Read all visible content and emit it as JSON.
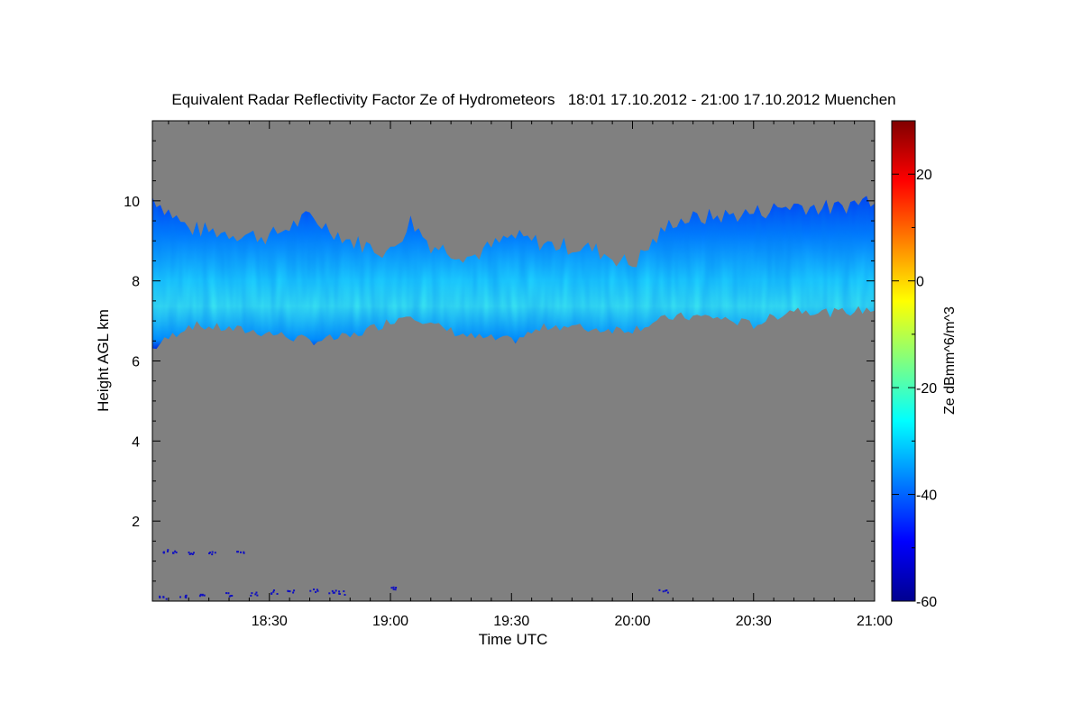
{
  "chart_data": {
    "type": "heatmap",
    "title": "Equivalent Radar Reflectivity Factor Ze of Hydrometeors   18:01 17.10.2012 - 21:00 17.10.2012 Muenchen",
    "xlabel": "Time UTC",
    "ylabel": "Height AGL km",
    "colorbar_label": "Ze dBmm^6/m^3",
    "xlim": [
      "18:01",
      "21:00"
    ],
    "ylim": [
      0,
      12
    ],
    "clim": [
      -60,
      30
    ],
    "x_ticks": [
      "18:30",
      "19:00",
      "19:30",
      "20:00",
      "20:30",
      "21:00"
    ],
    "y_ticks": [
      "2",
      "4",
      "6",
      "8",
      "10"
    ],
    "colorbar_ticks": [
      "-60",
      "-40",
      "-20",
      "0",
      "20"
    ],
    "background_color": "#808080",
    "colormap": [
      "#00008f",
      "#0000ff",
      "#0080ff",
      "#00ffff",
      "#80ff80",
      "#ffff00",
      "#ff8000",
      "#ff0000",
      "#800000"
    ],
    "cloud_layer": {
      "time": [
        "18:01",
        "18:10",
        "18:20",
        "18:30",
        "18:40",
        "18:50",
        "19:00",
        "19:05",
        "19:10",
        "19:20",
        "19:30",
        "19:40",
        "19:50",
        "20:00",
        "20:10",
        "20:20",
        "20:30",
        "20:40",
        "20:50",
        "21:00"
      ],
      "top_km": [
        10.1,
        9.3,
        9.2,
        9.1,
        9.6,
        9.0,
        8.7,
        9.5,
        8.9,
        8.6,
        9.1,
        8.9,
        8.8,
        8.4,
        9.5,
        9.6,
        9.7,
        9.9,
        9.8,
        10.1
      ],
      "base_km": [
        6.3,
        6.9,
        6.8,
        6.7,
        6.5,
        6.6,
        7.0,
        7.2,
        6.9,
        6.6,
        6.5,
        6.9,
        6.8,
        6.8,
        7.1,
        7.1,
        6.9,
        7.3,
        7.2,
        7.3
      ],
      "peak_ze_dbz": [
        -30,
        -28,
        -26,
        -24,
        -23,
        -22,
        -24,
        -28,
        -30,
        -29,
        -26,
        -27,
        -29,
        -30,
        -29,
        -27,
        -27,
        -26,
        -27,
        -28
      ]
    }
  }
}
